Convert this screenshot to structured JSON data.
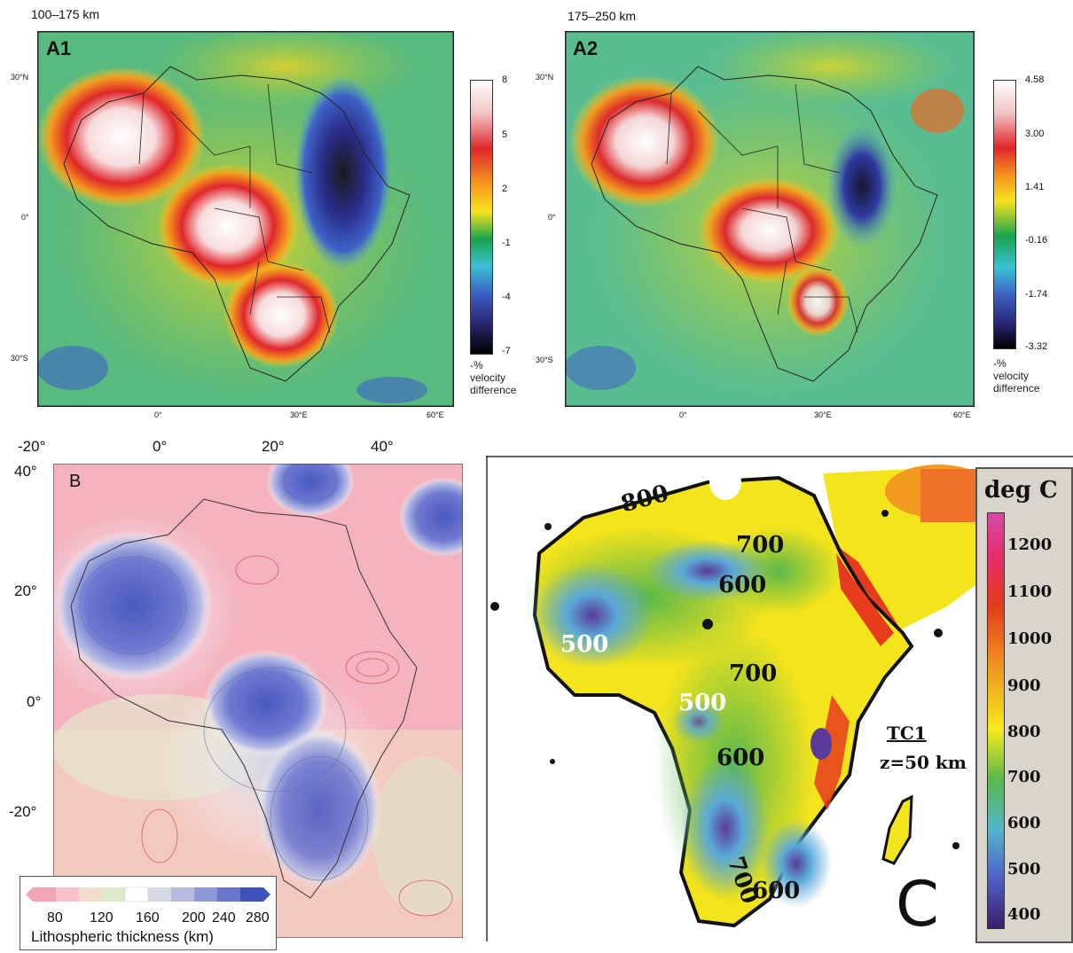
{
  "panel_a1": {
    "depth": "100–175 km",
    "label": "A1",
    "lat_ticks": [
      "30°N",
      "0°",
      "30°S"
    ],
    "lon_ticks": [
      "0°",
      "30°E",
      "60°E"
    ],
    "colorbar_ticks": [
      "8",
      "5",
      "2",
      "-1",
      "-4",
      "-7"
    ],
    "colorbar_caption": [
      "-%",
      "velocity",
      "difference"
    ]
  },
  "panel_a2": {
    "depth": "175–250 km",
    "label": "A2",
    "lat_ticks": [
      "30°N",
      "0°",
      "30°S"
    ],
    "lon_ticks": [
      "0°",
      "30°E",
      "60°E"
    ],
    "colorbar_ticks": [
      "4.58",
      "3.00",
      "1.41",
      "-0.16",
      "-1.74",
      "-3.32"
    ],
    "colorbar_caption": [
      "-%",
      "velocity",
      "difference"
    ]
  },
  "panel_b": {
    "label": "B",
    "top_ticks": [
      "-20°",
      "0°",
      "20°",
      "40°"
    ],
    "left_ticks": [
      "40°",
      "20°",
      "0°",
      "-20°"
    ],
    "legend_ticks": [
      "80",
      "120",
      "160",
      "200",
      "240",
      "280"
    ],
    "legend_title": "Lithospheric thickness (km)"
  },
  "panel_c": {
    "label": "C",
    "tc1": "TC1",
    "depth": "z=50 km",
    "colorbar_title": "deg C",
    "colorbar_ticks": [
      "1200",
      "1100",
      "1000",
      "900",
      "800",
      "700",
      "600",
      "500",
      "400"
    ],
    "isotherms": [
      "800",
      "700",
      "600",
      "500",
      "700",
      "500",
      "600",
      "700",
      "600"
    ]
  },
  "colors": {
    "ocean_a": "#3cae9a",
    "land_a": "#8cc63e",
    "hot_c": "#e63b1c",
    "cool_c": "#5aa8d8"
  }
}
